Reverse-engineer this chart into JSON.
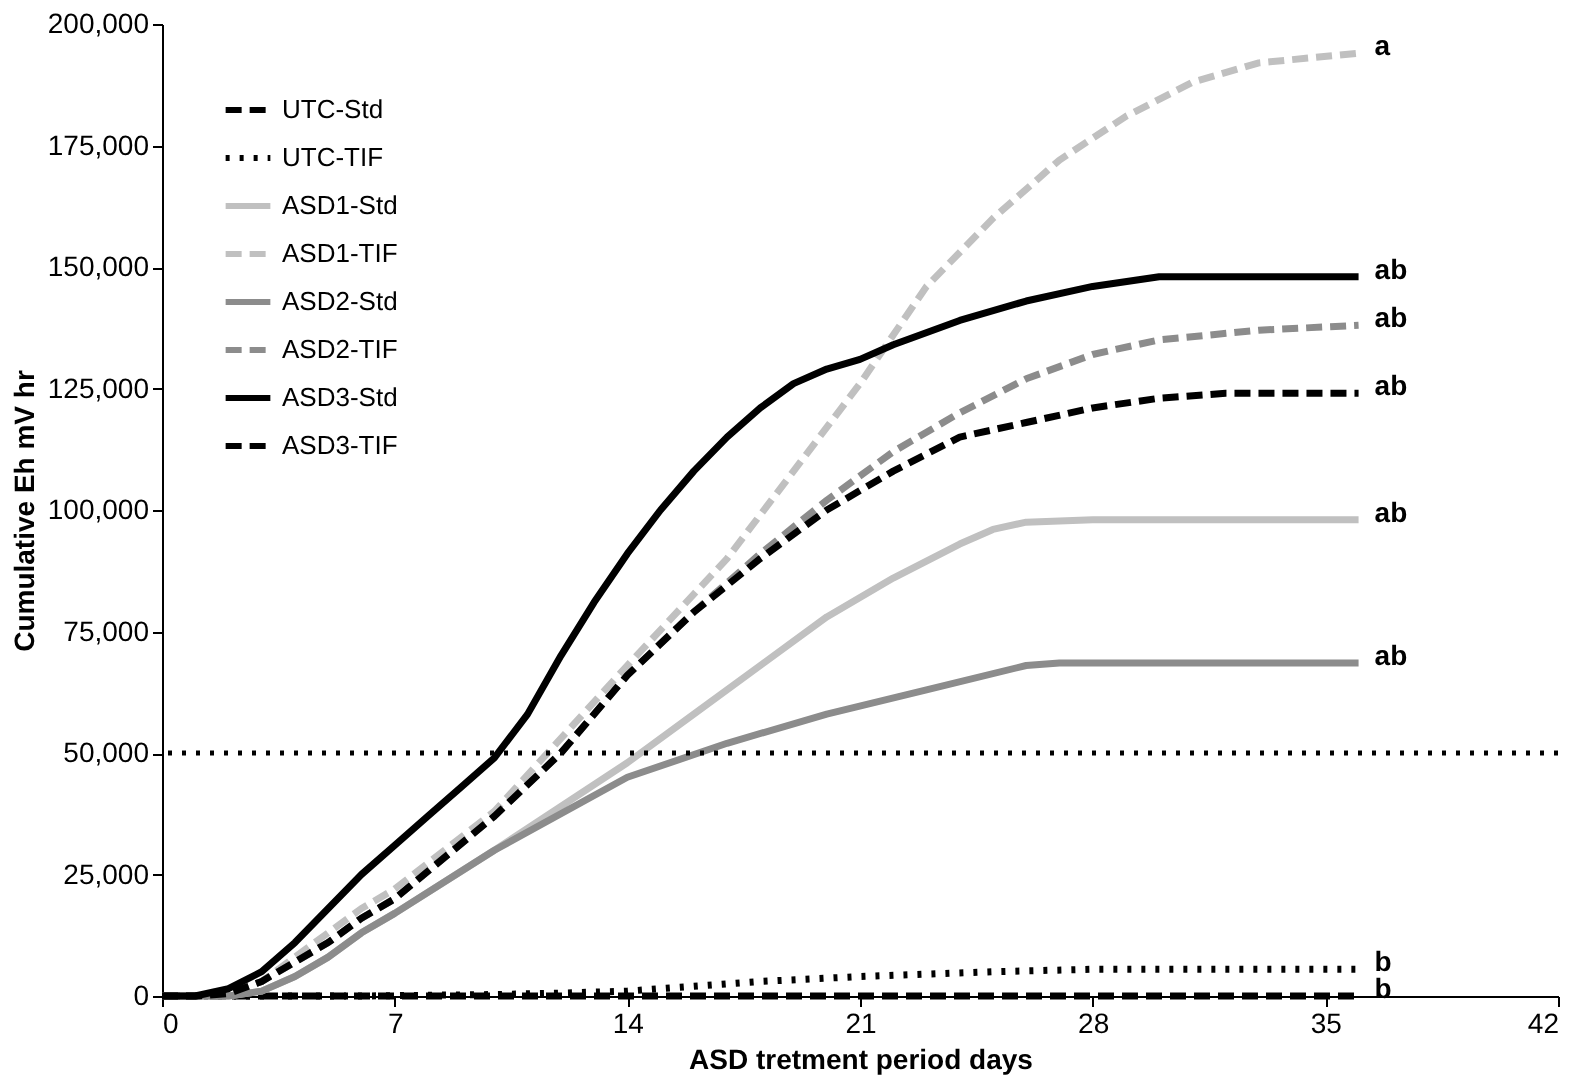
{
  "chart_data": {
    "type": "line",
    "xlabel": "ASD tretment period days",
    "ylabel": "Cumulative Eh mV hr",
    "xlim": [
      0,
      42
    ],
    "xticks": [
      0,
      7,
      14,
      21,
      28,
      35,
      42
    ],
    "ylim": [
      0,
      200000
    ],
    "yticks": [
      0,
      {
        "value": 25000,
        "label": "25,000"
      },
      {
        "value": 50000,
        "label": "50,000"
      },
      {
        "value": 75000,
        "label": "75,000"
      },
      {
        "value": 100000,
        "label": "100,000"
      },
      {
        "value": 125000,
        "label": "125,000"
      },
      {
        "value": 150000,
        "label": "150,000"
      },
      {
        "value": 175000,
        "label": "175,000"
      },
      {
        "value": 200000,
        "label": "200,000"
      }
    ],
    "grid": false,
    "legend": "top left",
    "series": [
      {
        "name": "UTC-Std",
        "color": "#000000",
        "line_style": "dashed",
        "x": [
          0,
          4,
          8,
          12,
          16,
          20,
          24,
          28,
          32,
          36
        ],
        "values": [
          0,
          0,
          0,
          0,
          0,
          0,
          0,
          0,
          0,
          0
        ],
        "value_labels": [
          null,
          null,
          null,
          null,
          null,
          null,
          null,
          null,
          null,
          "b"
        ]
      },
      {
        "name": "UTC-TIF",
        "color": "#000000",
        "line_style": "dotted",
        "x": [
          0,
          6,
          10,
          12,
          14,
          16,
          18,
          21,
          25,
          28,
          32,
          36
        ],
        "values": [
          0,
          0,
          300,
          600,
          1000,
          2000,
          3000,
          4000,
          5000,
          5500,
          5500,
          5500
        ],
        "value_labels": [
          null,
          null,
          null,
          null,
          null,
          null,
          null,
          null,
          null,
          null,
          null,
          "b"
        ]
      },
      {
        "name": "ASD1-Std",
        "color": "#c0c0c0",
        "line_style": "solid",
        "x": [
          0,
          1,
          2,
          3,
          4,
          5,
          6,
          7,
          10,
          14,
          16,
          18,
          20,
          22,
          24,
          25,
          26,
          28,
          36
        ],
        "values": [
          0,
          0,
          0,
          1000,
          4000,
          8000,
          13000,
          17000,
          30000,
          48000,
          58000,
          68000,
          78000,
          86000,
          93000,
          96000,
          97500,
          98000,
          98000
        ],
        "value_labels": [
          null,
          null,
          null,
          null,
          null,
          null,
          null,
          null,
          null,
          null,
          null,
          null,
          null,
          null,
          null,
          null,
          null,
          null,
          "ab"
        ]
      },
      {
        "name": "ASD1-TIF",
        "color": "#c0c0c0",
        "line_style": "dashed",
        "x": [
          0,
          1,
          2,
          3,
          4,
          5,
          6,
          7,
          10,
          14,
          17,
          19,
          21,
          23,
          25,
          27,
          29,
          31,
          33,
          36
        ],
        "values": [
          0,
          0,
          500,
          3000,
          8000,
          13000,
          18000,
          22000,
          38000,
          68000,
          90000,
          108000,
          126000,
          146000,
          160000,
          172000,
          181000,
          188000,
          192000,
          194000
        ],
        "value_labels": [
          null,
          null,
          null,
          null,
          null,
          null,
          null,
          null,
          null,
          null,
          null,
          null,
          null,
          null,
          null,
          null,
          null,
          null,
          null,
          "a"
        ]
      },
      {
        "name": "ASD2-Std",
        "color": "#8c8c8c",
        "line_style": "solid",
        "x": [
          0,
          1,
          2,
          3,
          4,
          5,
          6,
          7,
          10,
          14,
          17,
          20,
          23,
          26,
          27,
          36
        ],
        "values": [
          0,
          0,
          0,
          1000,
          4000,
          8000,
          13000,
          17000,
          30000,
          45000,
          52000,
          58000,
          63000,
          68000,
          68500,
          68500
        ],
        "value_labels": [
          null,
          null,
          null,
          null,
          null,
          null,
          null,
          null,
          null,
          null,
          null,
          null,
          null,
          null,
          null,
          "ab"
        ]
      },
      {
        "name": "ASD2-TIF",
        "color": "#8c8c8c",
        "line_style": "dashed",
        "x": [
          0,
          1,
          2,
          3,
          4,
          5,
          6,
          7,
          10,
          12,
          14,
          16,
          18,
          20,
          22,
          24,
          26,
          28,
          30,
          33,
          36
        ],
        "values": [
          0,
          0,
          500,
          3000,
          7000,
          11000,
          16000,
          20000,
          37000,
          50000,
          66000,
          79000,
          91000,
          102000,
          112000,
          120000,
          127000,
          132000,
          135000,
          137000,
          138000
        ],
        "value_labels": [
          null,
          null,
          null,
          null,
          null,
          null,
          null,
          null,
          null,
          null,
          null,
          null,
          null,
          null,
          null,
          null,
          null,
          null,
          null,
          null,
          "ab"
        ]
      },
      {
        "name": "ASD3-Std",
        "color": "#000000",
        "line_style": "solid",
        "x": [
          0,
          1,
          2,
          3,
          4,
          5,
          6,
          7,
          8,
          9,
          10,
          11,
          12,
          13,
          14,
          15,
          16,
          17,
          18,
          19,
          20,
          21,
          22,
          24,
          26,
          28,
          30,
          33,
          36
        ],
        "values": [
          0,
          0,
          1500,
          5000,
          11000,
          18000,
          25000,
          31000,
          37000,
          43000,
          49000,
          58000,
          70000,
          81000,
          91000,
          100000,
          108000,
          115000,
          121000,
          126000,
          129000,
          131000,
          134000,
          139000,
          143000,
          146000,
          148000,
          148000,
          148000
        ],
        "value_labels": [
          null,
          null,
          null,
          null,
          null,
          null,
          null,
          null,
          null,
          null,
          null,
          null,
          null,
          null,
          null,
          null,
          null,
          null,
          null,
          null,
          null,
          null,
          null,
          null,
          null,
          null,
          null,
          null,
          "ab"
        ]
      },
      {
        "name": "ASD3-TIF",
        "color": "#000000",
        "line_style": "dashed",
        "x": [
          0,
          1,
          2,
          3,
          4,
          5,
          6,
          7,
          10,
          12,
          14,
          16,
          18,
          20,
          22,
          24,
          26,
          28,
          30,
          32,
          36
        ],
        "values": [
          0,
          0,
          500,
          3000,
          7000,
          11000,
          16000,
          20000,
          37000,
          50000,
          66000,
          79000,
          90000,
          100000,
          108000,
          115000,
          118000,
          121000,
          123000,
          124000,
          124000
        ],
        "value_labels": [
          null,
          null,
          null,
          null,
          null,
          null,
          null,
          null,
          null,
          null,
          null,
          null,
          null,
          null,
          null,
          null,
          null,
          null,
          null,
          null,
          "ab"
        ]
      }
    ],
    "ref_lines": [
      {
        "axis": "y",
        "value": 50000,
        "line_style": "dotted",
        "color": "#000000"
      }
    ]
  }
}
